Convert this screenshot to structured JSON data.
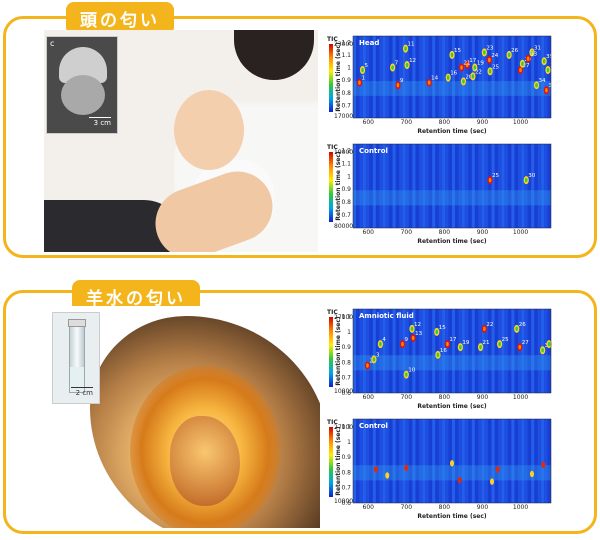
{
  "sections": [
    {
      "title": "頭の匂い",
      "inset_letter": "c",
      "inset_scale": "3 cm",
      "charts": [
        {
          "label": "Head",
          "tic": "TIC",
          "tic_max": "230000",
          "tic_min": "170000",
          "xlabel": "Retention time (sec)",
          "ylabel": "Retention time (sec)"
        },
        {
          "label": "Control",
          "tic": "TIC",
          "tic_max": "190000",
          "tic_min": "80000",
          "xlabel": "Retention time (sec)",
          "ylabel": "Retention time (sec)"
        }
      ]
    },
    {
      "title": "羊水の匂い",
      "inset_scale": "2 cm",
      "charts": [
        {
          "label": "Amniotic fluid",
          "tic": "TIC",
          "tic_max": "270000",
          "tic_min": "100000",
          "xlabel": "Retention time (sec)",
          "ylabel": "Retention time (sec)"
        },
        {
          "label": "Control",
          "tic": "TIC",
          "tic_max": "270000",
          "tic_min": "100000",
          "xlabel": "Retention time (sec)",
          "ylabel": "Retention time (sec)"
        }
      ]
    }
  ],
  "chart_data": [
    {
      "type": "heatmap",
      "title": "Head",
      "xlabel": "Retention time (sec)",
      "ylabel": "Retention time (sec)",
      "xlim": [
        560,
        1080
      ],
      "ylim": [
        0.6,
        1.25
      ],
      "xticks": [
        600,
        700,
        800,
        900,
        1000
      ],
      "yticks": [
        1.2,
        1.1,
        1,
        0.9,
        0.8,
        0.7
      ],
      "peaks": [
        {
          "label": "1",
          "x": 577,
          "y": 0.88
        },
        {
          "label": "5",
          "x": 585,
          "y": 0.98
        },
        {
          "label": "7",
          "x": 664,
          "y": 1.0
        },
        {
          "label": "9",
          "x": 678,
          "y": 0.86
        },
        {
          "label": "11",
          "x": 698,
          "y": 1.15
        },
        {
          "label": "12",
          "x": 702,
          "y": 1.02
        },
        {
          "label": "14",
          "x": 760,
          "y": 0.88
        },
        {
          "label": "15",
          "x": 820,
          "y": 1.1
        },
        {
          "label": "16",
          "x": 810,
          "y": 0.92
        },
        {
          "label": "17",
          "x": 860,
          "y": 1.02
        },
        {
          "label": "19",
          "x": 880,
          "y": 1.0
        },
        {
          "label": "20",
          "x": 850,
          "y": 0.89
        },
        {
          "label": "21",
          "x": 845,
          "y": 1.0
        },
        {
          "label": "22",
          "x": 875,
          "y": 0.93
        },
        {
          "label": "23",
          "x": 905,
          "y": 1.12
        },
        {
          "label": "24",
          "x": 918,
          "y": 1.06
        },
        {
          "label": "25",
          "x": 920,
          "y": 0.97
        },
        {
          "label": "26",
          "x": 970,
          "y": 1.1
        },
        {
          "label": "27",
          "x": 1000,
          "y": 0.98
        },
        {
          "label": "29",
          "x": 1005,
          "y": 1.03
        },
        {
          "label": "31",
          "x": 1030,
          "y": 1.12
        },
        {
          "label": "33",
          "x": 1020,
          "y": 1.07
        },
        {
          "label": "34",
          "x": 1042,
          "y": 0.86
        },
        {
          "label": "35",
          "x": 1062,
          "y": 1.05
        },
        {
          "label": "36",
          "x": 1068,
          "y": 0.82
        },
        {
          "label": "37",
          "x": 1072,
          "y": 0.98
        }
      ]
    },
    {
      "type": "heatmap",
      "title": "Control",
      "xlabel": "Retention time (sec)",
      "ylabel": "Retention time (sec)",
      "xlim": [
        560,
        1080
      ],
      "ylim": [
        0.6,
        1.25
      ],
      "xticks": [
        600,
        700,
        800,
        900,
        1000
      ],
      "yticks": [
        1.2,
        1.1,
        1,
        0.9,
        0.8,
        0.7
      ],
      "peaks": [
        {
          "label": "25",
          "x": 920,
          "y": 0.97
        },
        {
          "label": "30",
          "x": 1015,
          "y": 0.97
        }
      ]
    },
    {
      "type": "heatmap",
      "title": "Amniotic fluid",
      "xlabel": "Retention time (sec)",
      "ylabel": "Retention time (sec)",
      "xlim": [
        560,
        1080
      ],
      "ylim": [
        0.6,
        1.15
      ],
      "xticks": [
        600,
        700,
        800,
        900,
        1000
      ],
      "yticks": [
        1.1,
        1,
        0.9,
        0.8,
        0.7,
        0.6
      ],
      "peaks": [
        {
          "label": "2",
          "x": 598,
          "y": 0.78
        },
        {
          "label": "3",
          "x": 615,
          "y": 0.82
        },
        {
          "label": "4",
          "x": 632,
          "y": 0.92
        },
        {
          "label": "9",
          "x": 690,
          "y": 0.92
        },
        {
          "label": "10",
          "x": 700,
          "y": 0.72
        },
        {
          "label": "12",
          "x": 715,
          "y": 1.02
        },
        {
          "label": "13",
          "x": 718,
          "y": 0.96
        },
        {
          "label": "15",
          "x": 780,
          "y": 1.0
        },
        {
          "label": "16",
          "x": 783,
          "y": 0.85
        },
        {
          "label": "17",
          "x": 808,
          "y": 0.92
        },
        {
          "label": "19",
          "x": 842,
          "y": 0.9
        },
        {
          "label": "21",
          "x": 895,
          "y": 0.9
        },
        {
          "label": "22",
          "x": 905,
          "y": 1.02
        },
        {
          "label": "25",
          "x": 945,
          "y": 0.92
        },
        {
          "label": "26",
          "x": 990,
          "y": 1.02
        },
        {
          "label": "27",
          "x": 998,
          "y": 0.9
        },
        {
          "label": "33",
          "x": 1058,
          "y": 0.88
        },
        {
          "label": "35",
          "x": 1075,
          "y": 0.92
        }
      ]
    },
    {
      "type": "heatmap",
      "title": "Control",
      "xlabel": "Retention time (sec)",
      "ylabel": "Retention time (sec)",
      "xlim": [
        560,
        1080
      ],
      "ylim": [
        0.6,
        1.15
      ],
      "xticks": [
        600,
        700,
        800,
        900,
        1000
      ],
      "yticks": [
        1.1,
        1,
        0.9,
        0.8,
        0.7,
        0.6
      ],
      "peaks": []
    }
  ]
}
